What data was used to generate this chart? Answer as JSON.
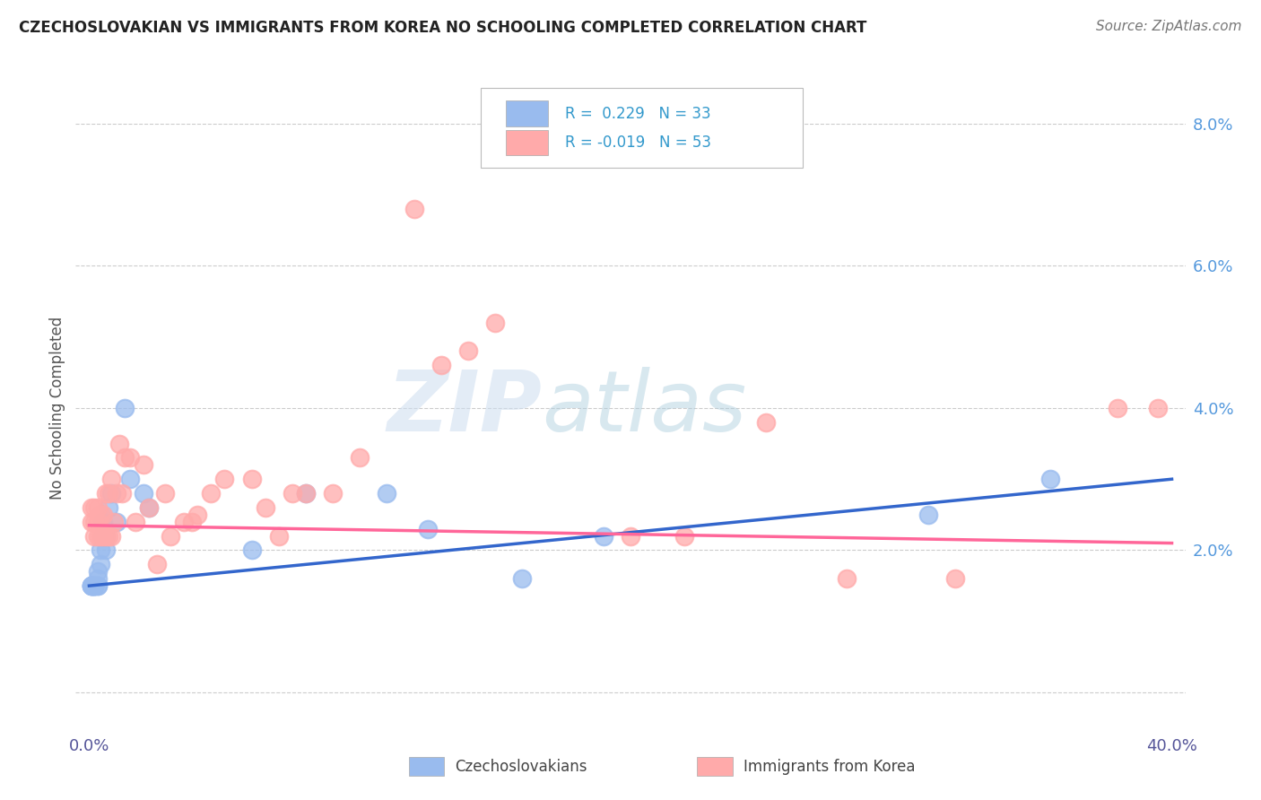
{
  "title": "CZECHOSLOVAKIAN VS IMMIGRANTS FROM KOREA NO SCHOOLING COMPLETED CORRELATION CHART",
  "source": "Source: ZipAtlas.com",
  "ylabel": "No Schooling Completed",
  "xlim": [
    -0.005,
    0.405
  ],
  "ylim": [
    -0.005,
    0.085
  ],
  "plot_xlim": [
    0.0,
    0.4
  ],
  "plot_ylim": [
    0.0,
    0.08
  ],
  "xticks": [
    0.0,
    0.1,
    0.2,
    0.3,
    0.4
  ],
  "yticks": [
    0.0,
    0.02,
    0.04,
    0.06,
    0.08
  ],
  "ytick_labels": [
    "",
    "2.0%",
    "4.0%",
    "6.0%",
    "8.0%"
  ],
  "xtick_labels": [
    "0.0%",
    "",
    "",
    "",
    "40.0%"
  ],
  "blue_color": "#99BBEE",
  "pink_color": "#FFAAAA",
  "blue_line_color": "#3366CC",
  "pink_line_color": "#FF6699",
  "legend_R_blue": " 0.229",
  "legend_N_blue": "33",
  "legend_R_pink": "-0.019",
  "legend_N_pink": "53",
  "legend_label_blue": "Czechoslovakians",
  "legend_label_pink": "Immigrants from Korea",
  "blue_scatter_x": [
    0.001,
    0.001,
    0.001,
    0.001,
    0.002,
    0.002,
    0.002,
    0.002,
    0.003,
    0.003,
    0.003,
    0.003,
    0.004,
    0.004,
    0.005,
    0.005,
    0.006,
    0.006,
    0.007,
    0.008,
    0.01,
    0.013,
    0.015,
    0.02,
    0.022,
    0.06,
    0.08,
    0.11,
    0.125,
    0.16,
    0.19,
    0.31,
    0.355
  ],
  "blue_scatter_y": [
    0.015,
    0.015,
    0.015,
    0.015,
    0.015,
    0.015,
    0.015,
    0.015,
    0.015,
    0.015,
    0.016,
    0.017,
    0.018,
    0.02,
    0.022,
    0.024,
    0.02,
    0.022,
    0.026,
    0.028,
    0.024,
    0.04,
    0.03,
    0.028,
    0.026,
    0.02,
    0.028,
    0.028,
    0.023,
    0.016,
    0.022,
    0.025,
    0.03
  ],
  "pink_scatter_x": [
    0.001,
    0.001,
    0.002,
    0.002,
    0.002,
    0.003,
    0.003,
    0.003,
    0.004,
    0.004,
    0.005,
    0.005,
    0.006,
    0.006,
    0.007,
    0.007,
    0.008,
    0.008,
    0.009,
    0.01,
    0.011,
    0.012,
    0.013,
    0.015,
    0.017,
    0.02,
    0.022,
    0.025,
    0.028,
    0.03,
    0.035,
    0.038,
    0.04,
    0.045,
    0.05,
    0.06,
    0.065,
    0.07,
    0.075,
    0.08,
    0.09,
    0.1,
    0.12,
    0.13,
    0.14,
    0.15,
    0.2,
    0.22,
    0.25,
    0.28,
    0.32,
    0.38,
    0.395
  ],
  "pink_scatter_y": [
    0.024,
    0.026,
    0.022,
    0.024,
    0.026,
    0.022,
    0.024,
    0.026,
    0.022,
    0.025,
    0.022,
    0.025,
    0.022,
    0.028,
    0.022,
    0.028,
    0.022,
    0.03,
    0.024,
    0.028,
    0.035,
    0.028,
    0.033,
    0.033,
    0.024,
    0.032,
    0.026,
    0.018,
    0.028,
    0.022,
    0.024,
    0.024,
    0.025,
    0.028,
    0.03,
    0.03,
    0.026,
    0.022,
    0.028,
    0.028,
    0.028,
    0.033,
    0.068,
    0.046,
    0.048,
    0.052,
    0.022,
    0.022,
    0.038,
    0.016,
    0.016,
    0.04,
    0.04
  ],
  "blue_trend_x": [
    0.0,
    0.4
  ],
  "blue_trend_y": [
    0.015,
    0.03
  ],
  "pink_trend_x": [
    0.0,
    0.4
  ],
  "pink_trend_y": [
    0.0235,
    0.021
  ],
  "background_color": "#FFFFFF",
  "grid_color": "#CCCCCC",
  "title_color": "#222222",
  "source_color": "#777777",
  "yaxis_label_color": "#555555",
  "ytick_color": "#5599DD",
  "xtick_color": "#555599",
  "watermark_zip_color": "#CCDDEE",
  "watermark_atlas_color": "#AABBCC"
}
